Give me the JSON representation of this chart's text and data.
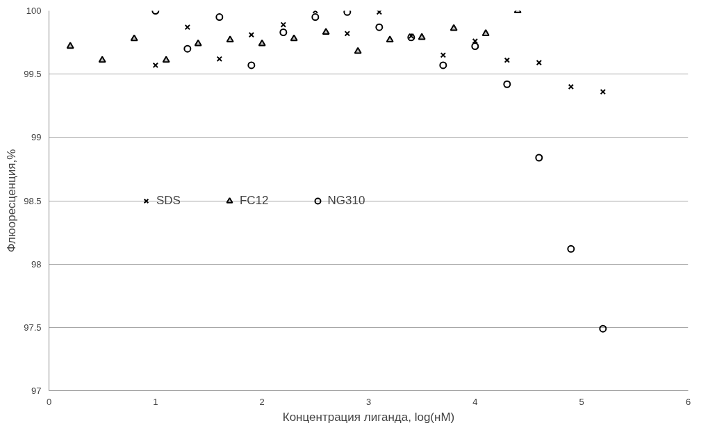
{
  "chart_data": {
    "type": "scatter",
    "xlabel": "Концентрация лиганда, log(нМ)",
    "ylabel": "Флюоресценция,%",
    "xlim": [
      0,
      6
    ],
    "xticks": [
      0,
      1,
      2,
      3,
      4,
      5,
      6
    ],
    "ylim": [
      97,
      100
    ],
    "yticks": [
      97,
      97.5,
      98,
      98.5,
      99,
      99.5,
      100
    ],
    "grid": "y",
    "legend": "left",
    "series": [
      {
        "name": "SDS",
        "color": "#000000",
        "marker": "cross",
        "x": [
          1.0,
          1.3,
          1.6,
          1.9,
          2.2,
          2.5,
          2.8,
          3.1,
          3.4,
          3.7,
          4.0,
          4.3,
          4.6,
          4.9,
          5.2
        ],
        "values": [
          99.57,
          99.87,
          99.62,
          99.81,
          99.89,
          100.0,
          99.82,
          99.99,
          99.8,
          99.65,
          99.76,
          99.61,
          99.59,
          99.4,
          99.36
        ]
      },
      {
        "name": "FC12",
        "color": "#000000",
        "marker": "triangle",
        "x": [
          0.2,
          0.5,
          0.8,
          1.1,
          1.4,
          1.7,
          2.0,
          2.3,
          2.6,
          2.9,
          3.2,
          3.5,
          3.8,
          4.1,
          4.4
        ],
        "values": [
          99.72,
          99.61,
          99.78,
          99.61,
          99.74,
          99.77,
          99.74,
          99.78,
          99.83,
          99.68,
          99.77,
          99.79,
          99.86,
          99.82,
          100.0
        ]
      },
      {
        "name": "NG310",
        "color": "#000000",
        "marker": "circle",
        "x": [
          1.0,
          1.3,
          1.6,
          1.9,
          2.2,
          2.5,
          2.8,
          3.1,
          3.4,
          3.7,
          4.0,
          4.3,
          4.6,
          4.9,
          5.2
        ],
        "values": [
          100.0,
          99.7,
          99.95,
          99.57,
          99.83,
          99.95,
          99.99,
          99.87,
          99.79,
          99.57,
          99.72,
          99.42,
          98.84,
          98.12,
          97.49
        ]
      }
    ]
  }
}
